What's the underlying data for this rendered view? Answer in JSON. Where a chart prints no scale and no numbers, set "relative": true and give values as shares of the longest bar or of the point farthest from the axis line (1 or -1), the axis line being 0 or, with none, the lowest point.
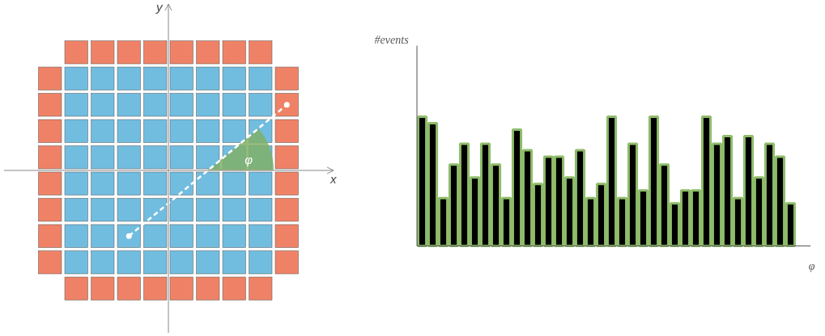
{
  "chart_data": [
    {
      "type": "other",
      "annotations": [
        "y",
        "x",
        "φ"
      ]
    },
    {
      "type": "bar",
      "relative": true,
      "ylabel": "#events",
      "xlabel": "φ",
      "color": "#000000",
      "categories": [
        null,
        null,
        null,
        null,
        null,
        null,
        null,
        null,
        null,
        null,
        null,
        null,
        null,
        null,
        null,
        null,
        null,
        null,
        null,
        null,
        null,
        null,
        null,
        null,
        null,
        null,
        null,
        null,
        null,
        null,
        null,
        null,
        null,
        null,
        null,
        null
      ],
      "values": [
        1.0,
        0.95,
        0.37,
        0.63,
        0.79,
        0.53,
        0.79,
        0.63,
        0.37,
        0.9,
        0.74,
        0.48,
        0.69,
        0.69,
        0.53,
        0.74,
        0.37,
        0.48,
        1.0,
        0.37,
        0.79,
        0.43,
        1.0,
        0.63,
        0.33,
        0.43,
        0.43,
        1.0,
        0.79,
        0.85,
        0.37,
        0.85,
        0.53,
        0.79,
        0.69,
        0.33
      ]
    }
  ]
}
